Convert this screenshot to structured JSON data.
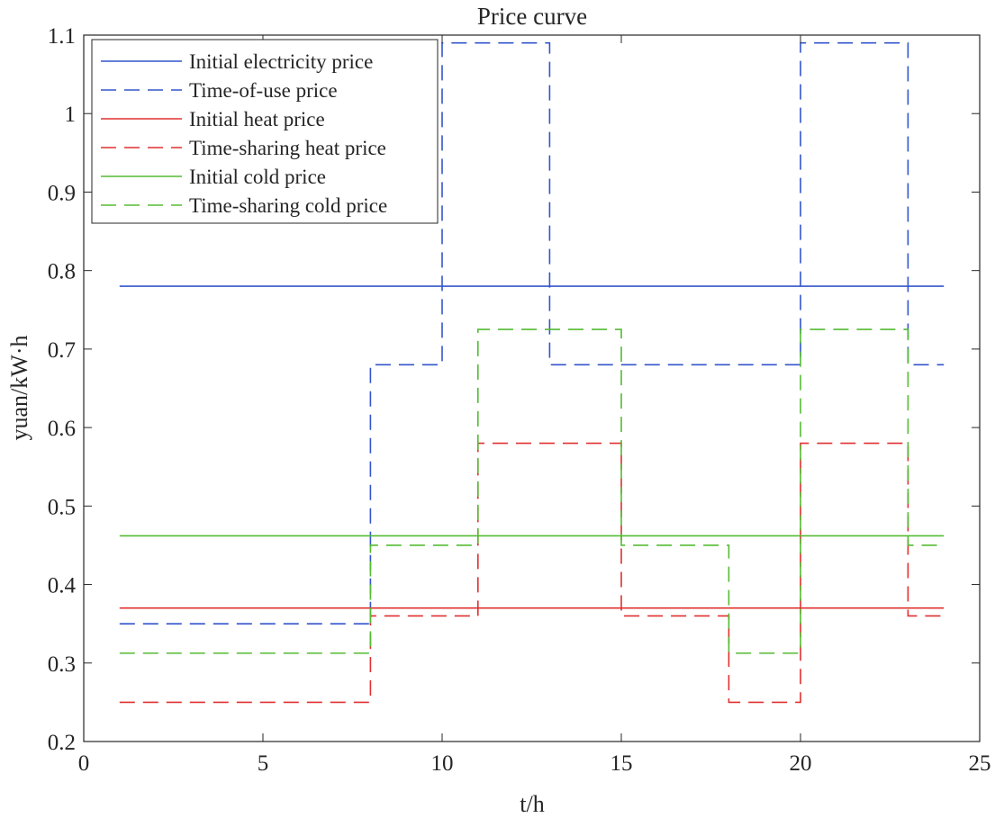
{
  "chart_data": {
    "type": "line",
    "title": "Price curve",
    "xlabel": "t/h",
    "ylabel": "yuan/kW·h",
    "xlim": [
      0,
      25
    ],
    "ylim": [
      0.2,
      1.1
    ],
    "xticks": [
      0,
      5,
      10,
      15,
      20,
      25
    ],
    "xtick_labels": [
      "0",
      "5",
      "10",
      "15",
      "20",
      "25"
    ],
    "yticks": [
      0.2,
      0.3,
      0.4,
      0.5,
      0.6,
      0.7,
      0.8,
      0.9,
      1.0,
      1.1
    ],
    "ytick_labels": [
      "0.2",
      "0.3",
      "0.4",
      "0.5",
      "0.6",
      "0.7",
      "0.8",
      "0.9",
      "1",
      "1.1"
    ],
    "grid": false,
    "legend_position": "top-left",
    "series": [
      {
        "name": "Initial electricity price",
        "color": "#3355cc",
        "style": "solid",
        "points": [
          [
            1,
            0.78
          ],
          [
            24,
            0.78
          ]
        ]
      },
      {
        "name": "Time-of-use price",
        "color": "#3355cc",
        "style": "dashed",
        "points": [
          [
            1,
            0.35
          ],
          [
            8,
            0.35
          ],
          [
            8,
            0.68
          ],
          [
            10,
            0.68
          ],
          [
            10,
            1.09
          ],
          [
            13,
            1.09
          ],
          [
            13,
            0.68
          ],
          [
            20,
            0.68
          ],
          [
            20,
            1.09
          ],
          [
            23,
            1.09
          ],
          [
            23,
            0.68
          ],
          [
            24,
            0.68
          ]
        ]
      },
      {
        "name": "Initial heat price",
        "color": "#e03030",
        "style": "solid",
        "points": [
          [
            1,
            0.37
          ],
          [
            24,
            0.37
          ]
        ]
      },
      {
        "name": "Time-sharing heat price",
        "color": "#e03030",
        "style": "dashed",
        "points": [
          [
            1,
            0.25
          ],
          [
            8,
            0.25
          ],
          [
            8,
            0.36
          ],
          [
            11,
            0.36
          ],
          [
            11,
            0.58
          ],
          [
            15,
            0.58
          ],
          [
            15,
            0.36
          ],
          [
            18,
            0.36
          ],
          [
            18,
            0.25
          ],
          [
            20,
            0.25
          ],
          [
            20,
            0.58
          ],
          [
            23,
            0.58
          ],
          [
            23,
            0.36
          ],
          [
            24,
            0.36
          ]
        ]
      },
      {
        "name": "Initial cold price",
        "color": "#55bb33",
        "style": "solid",
        "points": [
          [
            1,
            0.462
          ],
          [
            24,
            0.462
          ]
        ]
      },
      {
        "name": "Time-sharing cold price",
        "color": "#55bb33",
        "style": "dashed",
        "points": [
          [
            1,
            0.3125
          ],
          [
            8,
            0.3125
          ],
          [
            8,
            0.45
          ],
          [
            11,
            0.45
          ],
          [
            11,
            0.725
          ],
          [
            15,
            0.725
          ],
          [
            15,
            0.45
          ],
          [
            18,
            0.45
          ],
          [
            18,
            0.3125
          ],
          [
            20,
            0.3125
          ],
          [
            20,
            0.725
          ],
          [
            23,
            0.725
          ],
          [
            23,
            0.45
          ],
          [
            24,
            0.45
          ]
        ]
      }
    ]
  }
}
